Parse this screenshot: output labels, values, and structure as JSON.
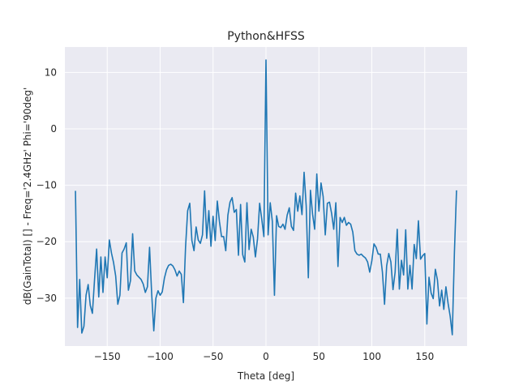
{
  "chart_data": {
    "type": "line",
    "title": "Python&HFSS",
    "xlabel": "Theta [deg]",
    "ylabel": "dB(GainTotal) [] - Freq='2.4GHz' Phi='90deg'",
    "xlim": [
      -190,
      190
    ],
    "ylim": [
      -38.5,
      14.5
    ],
    "xticks": [
      -150,
      -100,
      -50,
      0,
      50,
      100,
      150
    ],
    "yticks": [
      10,
      0,
      -10,
      -20,
      -30
    ],
    "grid": true,
    "series": [
      {
        "color": "#1f77b4",
        "points": [
          [
            -180,
            -11
          ],
          [
            -178,
            -35.2
          ],
          [
            -176,
            -26.7
          ],
          [
            -174,
            -36.2
          ],
          [
            -172,
            -35
          ],
          [
            -170,
            -29.5
          ],
          [
            -168,
            -27.6
          ],
          [
            -166,
            -31.3
          ],
          [
            -164,
            -32.7
          ],
          [
            -162,
            -26.8
          ],
          [
            -160,
            -21.3
          ],
          [
            -158,
            -29.8
          ],
          [
            -156,
            -22.7
          ],
          [
            -154,
            -29
          ],
          [
            -152,
            -22.7
          ],
          [
            -150,
            -26.4
          ],
          [
            -148,
            -19.7
          ],
          [
            -146,
            -22
          ],
          [
            -144,
            -23.7
          ],
          [
            -142,
            -26.1
          ],
          [
            -140,
            -31.1
          ],
          [
            -138,
            -29.5
          ],
          [
            -136,
            -22
          ],
          [
            -134,
            -21.3
          ],
          [
            -132,
            -20.2
          ],
          [
            -130,
            -28.6
          ],
          [
            -128,
            -26.9
          ],
          [
            -126,
            -18.6
          ],
          [
            -124,
            -25.2
          ],
          [
            -122,
            -25.9
          ],
          [
            -120,
            -26.3
          ],
          [
            -118,
            -26.7
          ],
          [
            -116,
            -27.5
          ],
          [
            -114,
            -29
          ],
          [
            -112,
            -28
          ],
          [
            -110,
            -21
          ],
          [
            -108,
            -29.2
          ],
          [
            -106,
            -35.8
          ],
          [
            -104,
            -30
          ],
          [
            -102,
            -28.7
          ],
          [
            -100,
            -29.5
          ],
          [
            -98,
            -28.9
          ],
          [
            -96,
            -26.5
          ],
          [
            -94,
            -25
          ],
          [
            -92,
            -24.2
          ],
          [
            -90,
            -24
          ],
          [
            -88,
            -24.3
          ],
          [
            -86,
            -25
          ],
          [
            -84,
            -26.1
          ],
          [
            -82,
            -25.2
          ],
          [
            -80,
            -25.8
          ],
          [
            -78,
            -30.8
          ],
          [
            -76,
            -21
          ],
          [
            -74,
            -14.5
          ],
          [
            -72,
            -13.2
          ],
          [
            -70,
            -19.8
          ],
          [
            -68,
            -21.6
          ],
          [
            -66,
            -17.4
          ],
          [
            -64,
            -19.7
          ],
          [
            -62,
            -20.3
          ],
          [
            -60,
            -18.8
          ],
          [
            -58,
            -11
          ],
          [
            -56,
            -19.4
          ],
          [
            -54,
            -14.5
          ],
          [
            -52,
            -20.8
          ],
          [
            -50,
            -15.5
          ],
          [
            -48,
            -19.8
          ],
          [
            -46,
            -12.8
          ],
          [
            -44,
            -16.4
          ],
          [
            -42,
            -19.1
          ],
          [
            -40,
            -19.1
          ],
          [
            -38,
            -21.6
          ],
          [
            -36,
            -15.3
          ],
          [
            -34,
            -13
          ],
          [
            -32,
            -12.2
          ],
          [
            -30,
            -14.8
          ],
          [
            -28,
            -14.3
          ],
          [
            -26,
            -22.4
          ],
          [
            -24,
            -13.4
          ],
          [
            -22,
            -22.3
          ],
          [
            -20,
            -23.6
          ],
          [
            -18,
            -13.1
          ],
          [
            -16,
            -21.4
          ],
          [
            -14,
            -17.8
          ],
          [
            -12,
            -19.2
          ],
          [
            -10,
            -22.7
          ],
          [
            -8,
            -19.5
          ],
          [
            -6,
            -13.2
          ],
          [
            -4,
            -16
          ],
          [
            -2,
            -19.1
          ],
          [
            0,
            12.2
          ],
          [
            2,
            -18.8
          ],
          [
            4,
            -13.1
          ],
          [
            6,
            -16.4
          ],
          [
            8,
            -29.5
          ],
          [
            10,
            -15.4
          ],
          [
            12,
            -17.3
          ],
          [
            14,
            -17.5
          ],
          [
            16,
            -16.9
          ],
          [
            18,
            -17.8
          ],
          [
            20,
            -15.3
          ],
          [
            22,
            -14
          ],
          [
            24,
            -17.3
          ],
          [
            26,
            -18
          ],
          [
            28,
            -11.4
          ],
          [
            30,
            -14.6
          ],
          [
            32,
            -11.9
          ],
          [
            34,
            -15.2
          ],
          [
            36,
            -7.7
          ],
          [
            38,
            -13.7
          ],
          [
            40,
            -26.4
          ],
          [
            42,
            -10.9
          ],
          [
            44,
            -15.1
          ],
          [
            46,
            -17.8
          ],
          [
            48,
            -8
          ],
          [
            50,
            -14.6
          ],
          [
            52,
            -9.6
          ],
          [
            54,
            -12
          ],
          [
            56,
            -18.8
          ],
          [
            58,
            -13.2
          ],
          [
            60,
            -13
          ],
          [
            62,
            -15
          ],
          [
            64,
            -17.8
          ],
          [
            66,
            -13.1
          ],
          [
            68,
            -24.4
          ],
          [
            70,
            -15.7
          ],
          [
            72,
            -16.6
          ],
          [
            74,
            -15.7
          ],
          [
            76,
            -17.1
          ],
          [
            78,
            -16.6
          ],
          [
            80,
            -16.9
          ],
          [
            82,
            -18.3
          ],
          [
            84,
            -21.6
          ],
          [
            86,
            -22.2
          ],
          [
            88,
            -22.4
          ],
          [
            90,
            -22.2
          ],
          [
            92,
            -22.6
          ],
          [
            94,
            -22.9
          ],
          [
            96,
            -23.6
          ],
          [
            98,
            -25.4
          ],
          [
            100,
            -23.4
          ],
          [
            102,
            -20.4
          ],
          [
            104,
            -21
          ],
          [
            106,
            -22.2
          ],
          [
            108,
            -22.2
          ],
          [
            110,
            -25.4
          ],
          [
            112,
            -31.1
          ],
          [
            114,
            -24.3
          ],
          [
            116,
            -22.1
          ],
          [
            118,
            -23.6
          ],
          [
            120,
            -28.5
          ],
          [
            122,
            -25.4
          ],
          [
            124,
            -17.8
          ],
          [
            126,
            -28.4
          ],
          [
            128,
            -23.3
          ],
          [
            130,
            -25.9
          ],
          [
            132,
            -17.9
          ],
          [
            134,
            -28.4
          ],
          [
            136,
            -24.2
          ],
          [
            138,
            -28.4
          ],
          [
            140,
            -20.5
          ],
          [
            142,
            -23
          ],
          [
            144,
            -16.3
          ],
          [
            146,
            -23.1
          ],
          [
            148,
            -22.5
          ],
          [
            150,
            -22.1
          ],
          [
            152,
            -34.6
          ],
          [
            154,
            -26.3
          ],
          [
            156,
            -29.1
          ],
          [
            158,
            -30.1
          ],
          [
            160,
            -24.9
          ],
          [
            162,
            -26.8
          ],
          [
            164,
            -31.4
          ],
          [
            166,
            -28.6
          ],
          [
            168,
            -32
          ],
          [
            170,
            -28
          ],
          [
            172,
            -30.9
          ],
          [
            174,
            -33.2
          ],
          [
            176,
            -36.5
          ],
          [
            178,
            -22
          ],
          [
            180,
            -10.9
          ]
        ]
      }
    ]
  }
}
